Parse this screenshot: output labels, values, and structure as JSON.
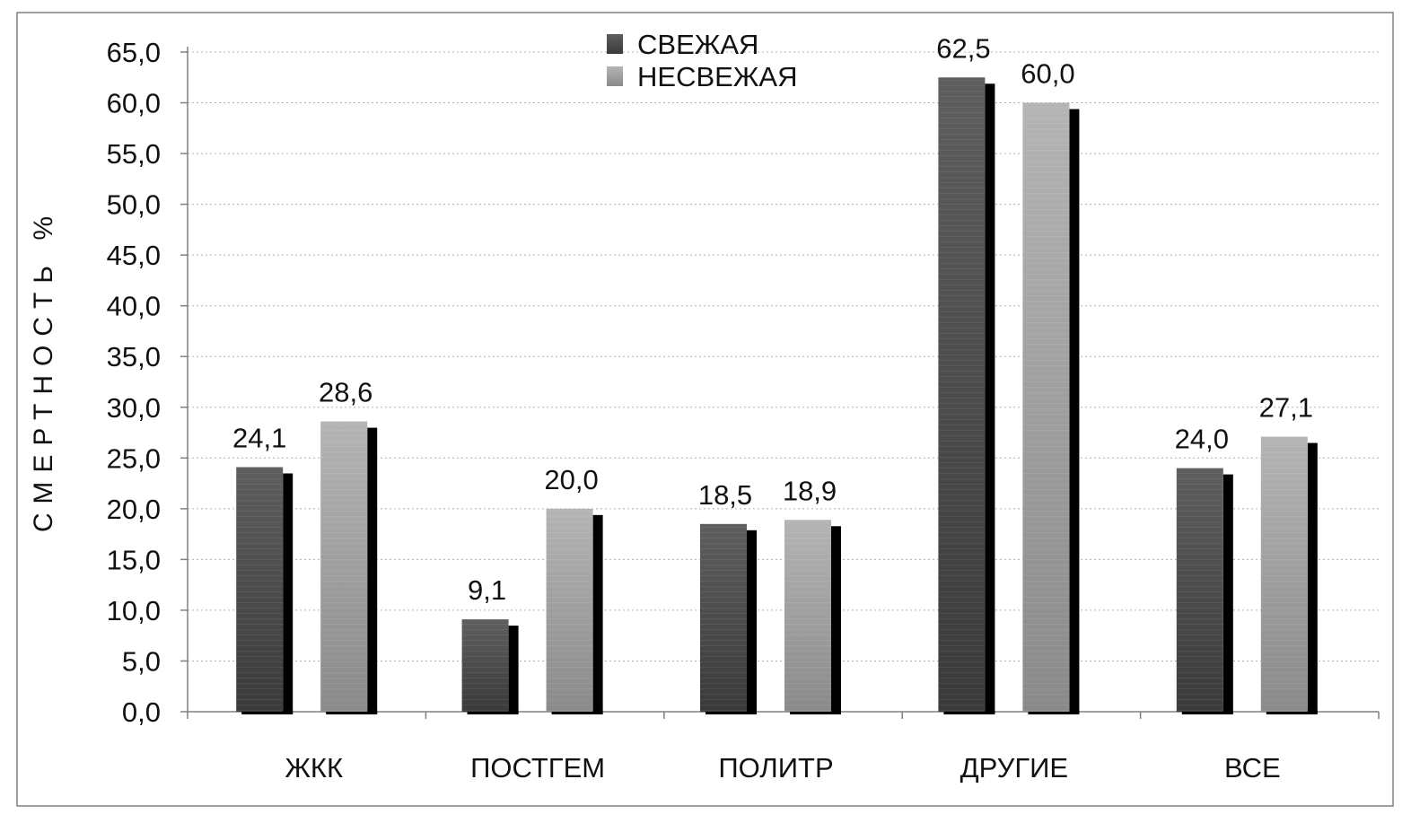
{
  "chart_data": {
    "type": "bar",
    "title": "",
    "xlabel": "",
    "ylabel": "СМЕРТНОСТЬ %",
    "ylim": [
      0,
      65
    ],
    "yticks": [
      "0,0",
      "5,0",
      "10,0",
      "15,0",
      "20,0",
      "25,0",
      "30,0",
      "35,0",
      "40,0",
      "45,0",
      "50,0",
      "55,0",
      "60,0",
      "65,0"
    ],
    "grid": true,
    "legend_position": "top-center",
    "categories": [
      "ЖКК",
      "ПОСТГЕМ",
      "ПОЛИТР",
      "ДРУГИЕ",
      "ВСЕ"
    ],
    "series": [
      {
        "name": "СВЕЖАЯ",
        "values": [
          24.1,
          9.1,
          18.5,
          62.5,
          24.0
        ],
        "labels": [
          "24,1",
          "9,1",
          "18,5",
          "62,5",
          "24,0"
        ],
        "color": "#555555"
      },
      {
        "name": "НЕСВЕЖАЯ",
        "values": [
          28.6,
          20.0,
          18.9,
          60.0,
          27.1
        ],
        "labels": [
          "28,6",
          "20,0",
          "18,9",
          "60,0",
          "27,1"
        ],
        "color": "#aaaaaa"
      }
    ],
    "shadow_color": "#000000"
  }
}
